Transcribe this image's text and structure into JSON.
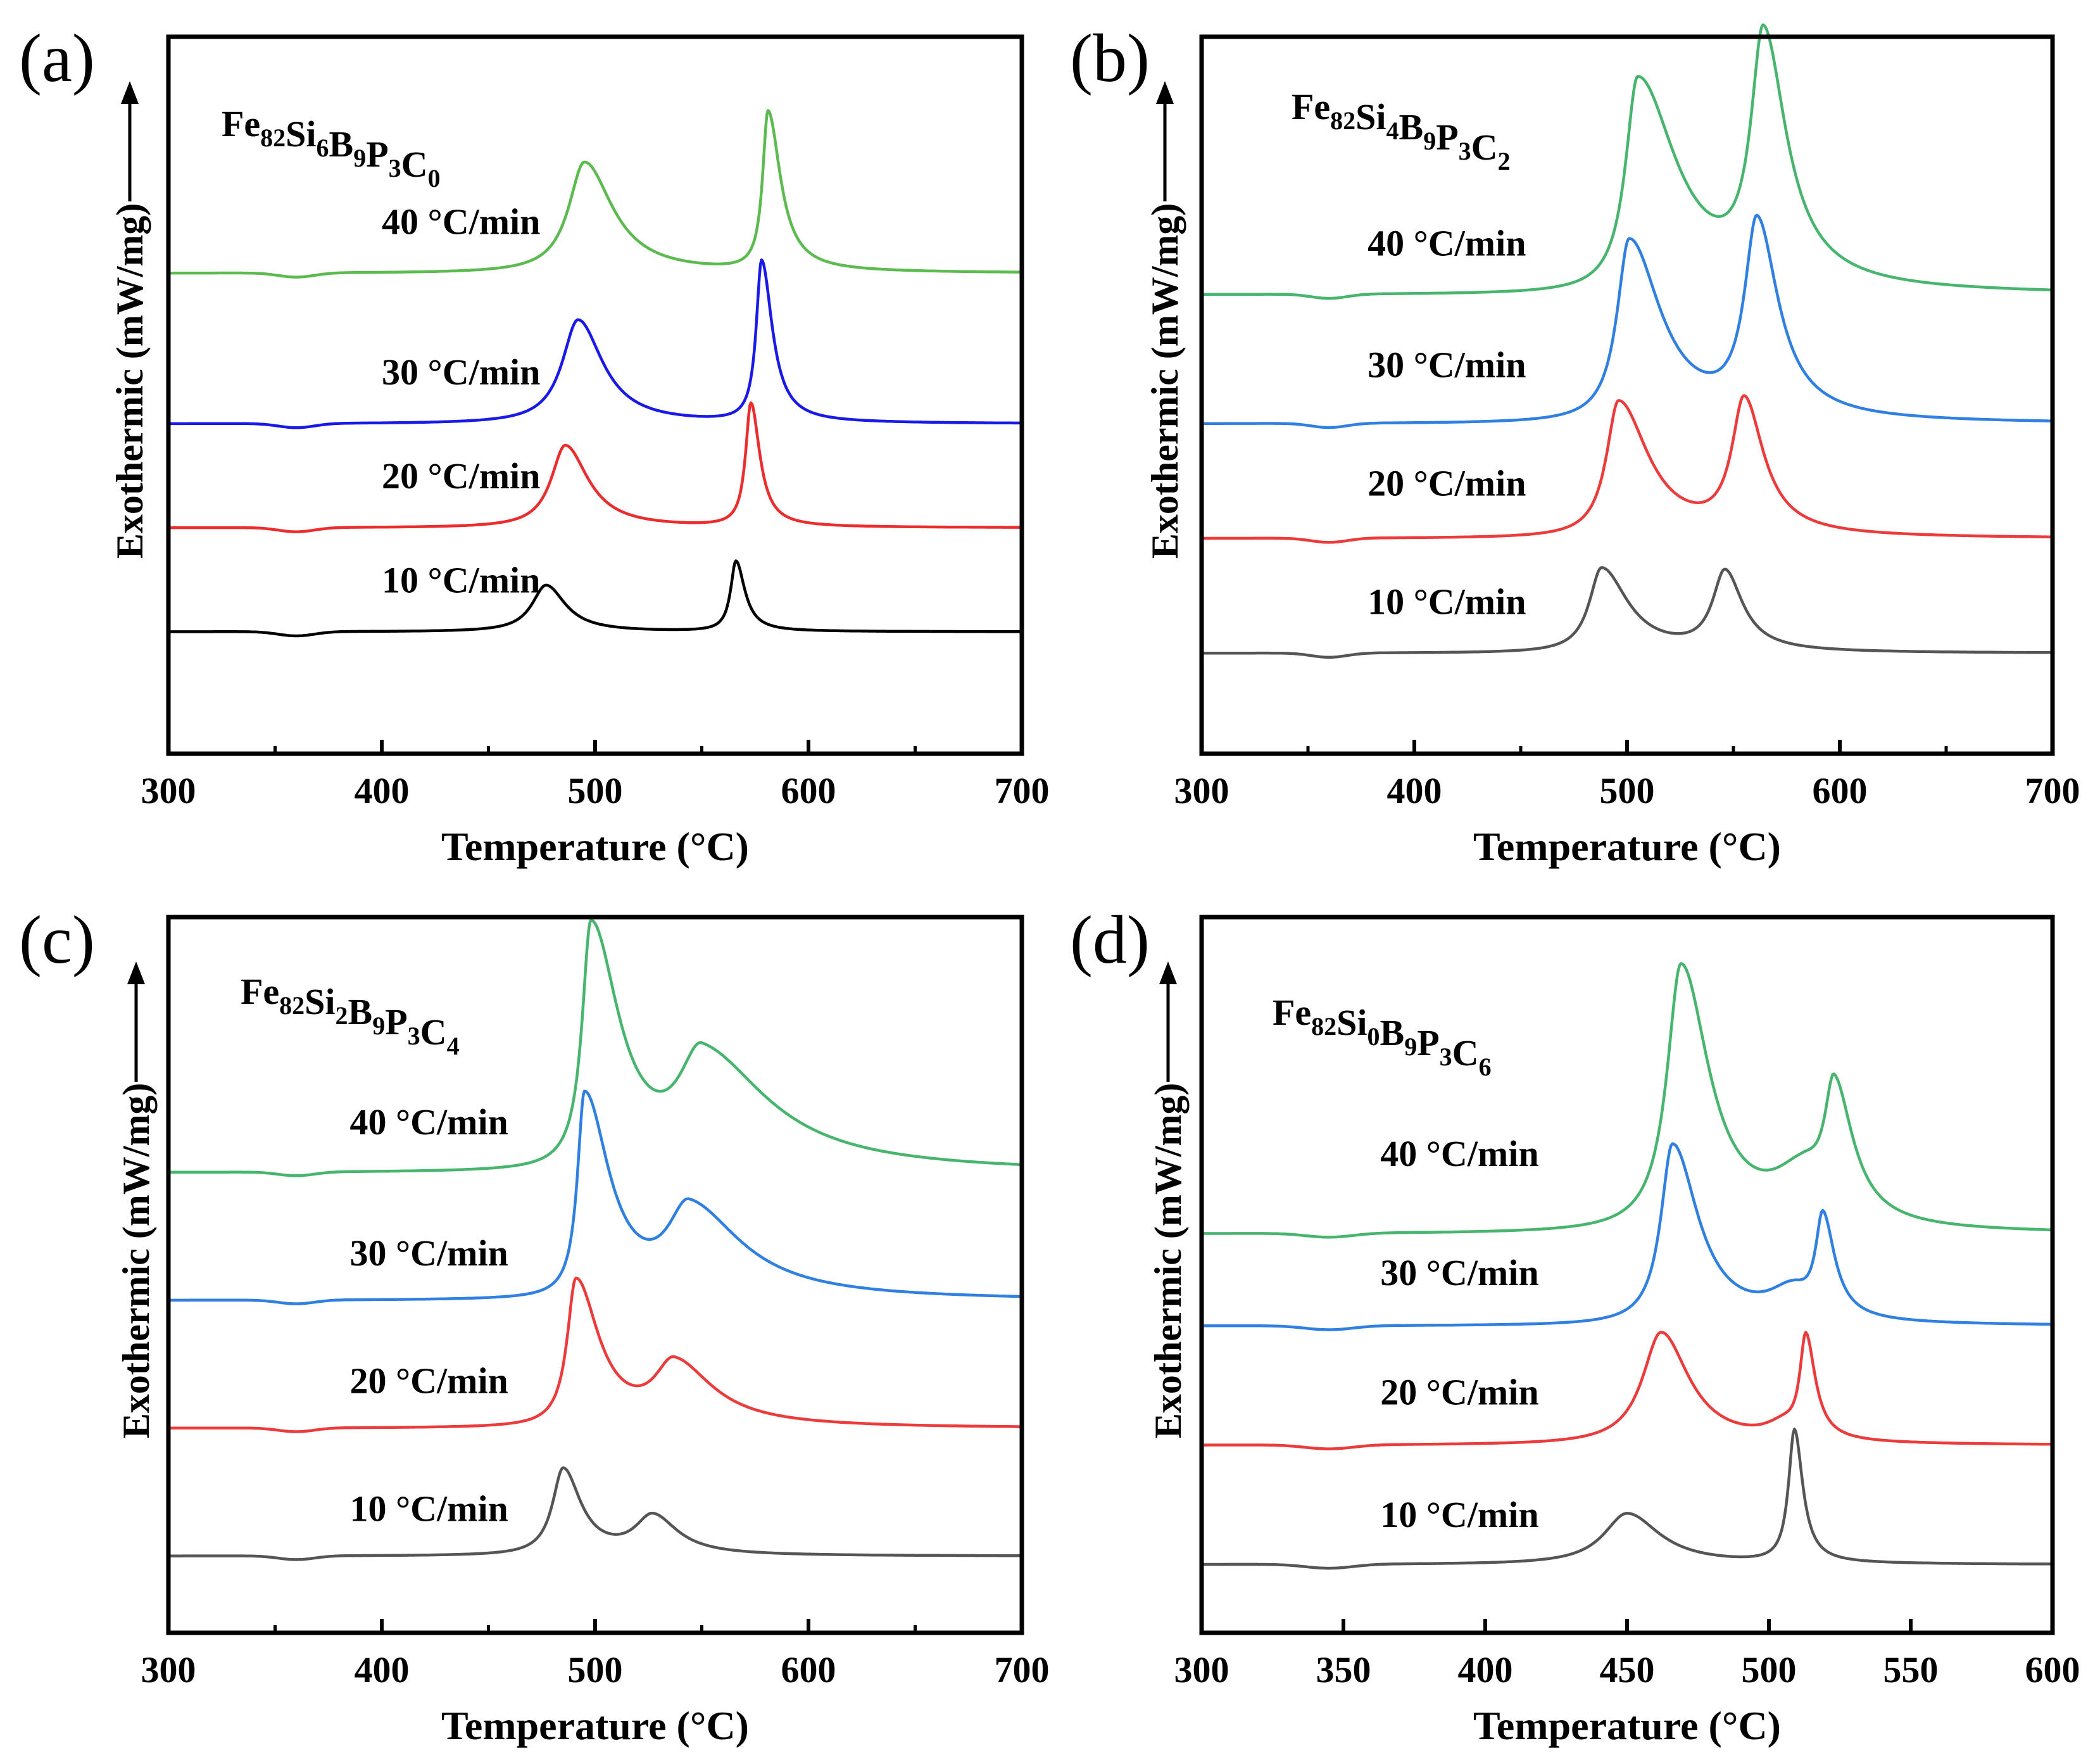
{
  "figure_type": "DSC curves, four panels",
  "chart_data": [
    {
      "panel": "a",
      "panel_label": "(a)",
      "type": "line",
      "composition": {
        "parts": [
          [
            "Fe",
            "82"
          ],
          [
            "Si",
            "6"
          ],
          [
            "B",
            "9"
          ],
          [
            "P",
            "3"
          ],
          [
            "C",
            "0"
          ]
        ]
      },
      "xlabel": "Temperature (°C)",
      "ylabel": "Exothermic (mW/mg)",
      "xlim": [
        300,
        700
      ],
      "xticks": [
        300,
        400,
        500,
        600,
        700
      ],
      "minor_xticks": [
        350,
        450,
        550,
        650
      ],
      "ylim": [
        -1.7,
        8.3
      ],
      "series": [
        {
          "name": "10 °C/min",
          "color": "#000000",
          "baseline": 0.0,
          "label_x": 400,
          "label_y": 0.55,
          "peaks": [
            [
              477,
              0.65,
              8,
              11
            ],
            [
              566,
              0.98,
              3,
              5
            ]
          ]
        },
        {
          "name": "20 °C/min",
          "color": "#ec2d2d",
          "baseline": 1.45,
          "label_x": 400,
          "label_y": 2.0,
          "peaks": [
            [
              486,
              1.15,
              8,
              13
            ],
            [
              573,
              1.72,
              3,
              5
            ]
          ]
        },
        {
          "name": "30 °C/min",
          "color": "#1a1ae8",
          "baseline": 2.9,
          "label_x": 400,
          "label_y": 3.45,
          "peaks": [
            [
              492,
              1.45,
              9,
              14
            ],
            [
              578,
              2.25,
              3,
              6
            ]
          ]
        },
        {
          "name": "40 °C/min",
          "color": "#5cbb4e",
          "baseline": 5.0,
          "label_x": 400,
          "label_y": 5.55,
          "peaks": [
            [
              495,
              1.55,
              9,
              16
            ],
            [
              581,
              2.22,
              3,
              7
            ]
          ]
        }
      ]
    },
    {
      "panel": "b",
      "panel_label": "(b)",
      "type": "line",
      "composition": {
        "parts": [
          [
            "Fe",
            "82"
          ],
          [
            "Si",
            "4"
          ],
          [
            "B",
            "9"
          ],
          [
            "P",
            "3"
          ],
          [
            "C",
            "2"
          ]
        ]
      },
      "xlabel": "Temperature (°C)",
      "ylabel": "Exothermic (mW/mg)",
      "xlim": [
        300,
        700
      ],
      "xticks": [
        300,
        400,
        500,
        600,
        700
      ],
      "minor_xticks": [
        350,
        450,
        550,
        650
      ],
      "ylim": [
        -1.4,
        8.6
      ],
      "series": [
        {
          "name": "10 °C/min",
          "color": "#555555",
          "baseline": 0.0,
          "label_x": 378,
          "label_y": 0.55,
          "peaks": [
            [
              488,
              1.18,
              7,
              15
            ],
            [
              546,
              1.1,
              7,
              10
            ]
          ]
        },
        {
          "name": "20 °C/min",
          "color": "#ec3b3b",
          "baseline": 1.6,
          "label_x": 378,
          "label_y": 2.2,
          "peaks": [
            [
              496,
              1.9,
              7,
              17
            ],
            [
              555,
              1.85,
              7,
              11
            ]
          ]
        },
        {
          "name": "30 °C/min",
          "color": "#2f80e0",
          "baseline": 3.2,
          "label_x": 378,
          "label_y": 3.85,
          "peaks": [
            [
              501,
              2.55,
              7,
              18
            ],
            [
              561,
              2.7,
              7,
              12
            ]
          ]
        },
        {
          "name": "40 °C/min",
          "color": "#47b56e",
          "baseline": 5.0,
          "label_x": 378,
          "label_y": 5.55,
          "peaks": [
            [
              505,
              3.0,
              7,
              22
            ],
            [
              564,
              3.4,
              7,
              13
            ]
          ]
        }
      ]
    },
    {
      "panel": "c",
      "panel_label": "(c)",
      "type": "line",
      "composition": {
        "parts": [
          [
            "Fe",
            "82"
          ],
          [
            "Si",
            "2"
          ],
          [
            "B",
            "9"
          ],
          [
            "P",
            "3"
          ],
          [
            "C",
            "4"
          ]
        ]
      },
      "xlabel": "Temperature (°C)",
      "ylabel": "Exothermic (mW/mg)",
      "xlim": [
        300,
        700
      ],
      "xticks": [
        300,
        400,
        500,
        600,
        700
      ],
      "minor_xticks": [
        350,
        450,
        550,
        650
      ],
      "ylim": [
        -1.2,
        10.0
      ],
      "series": [
        {
          "name": "10 °C/min",
          "color": "#555555",
          "baseline": 0.0,
          "label_x": 385,
          "label_y": 0.55,
          "peaks": [
            [
              485,
              1.35,
              6,
              10
            ],
            [
              527,
              0.6,
              10,
              14
            ]
          ]
        },
        {
          "name": "20 °C/min",
          "color": "#ec3b3b",
          "baseline": 2.0,
          "label_x": 385,
          "label_y": 2.55,
          "peaks": [
            [
              491,
              2.3,
              5,
              13
            ],
            [
              537,
              0.95,
              11,
              22
            ]
          ]
        },
        {
          "name": "30 °C/min",
          "color": "#2f80e0",
          "baseline": 4.0,
          "label_x": 385,
          "label_y": 4.55,
          "peaks": [
            [
              495,
              3.2,
              4,
              14
            ],
            [
              544,
              1.35,
              12,
              30
            ]
          ]
        },
        {
          "name": "40 °C/min",
          "color": "#47b56e",
          "baseline": 6.0,
          "label_x": 385,
          "label_y": 6.6,
          "peaks": [
            [
              498,
              3.85,
              5,
              16
            ],
            [
              550,
              1.7,
              13,
              38
            ]
          ]
        }
      ]
    },
    {
      "panel": "d",
      "panel_label": "(d)",
      "type": "line",
      "composition": {
        "parts": [
          [
            "Fe",
            "82"
          ],
          [
            "Si",
            "0"
          ],
          [
            "B",
            "9"
          ],
          [
            "P",
            "3"
          ],
          [
            "C",
            "6"
          ]
        ]
      },
      "xlabel": "Temperature (°C)",
      "ylabel": "Exothermic (mW/mg)",
      "xlim": [
        300,
        600
      ],
      "xticks": [
        300,
        350,
        400,
        450,
        500,
        550,
        600
      ],
      "minor_xticks": [],
      "ylim": [
        -1.0,
        9.5
      ],
      "series": [
        {
          "name": "10 °C/min",
          "color": "#555555",
          "baseline": 0.0,
          "label_x": 363,
          "label_y": 0.55,
          "peaks": [
            [
              450,
              0.75,
              10,
              14
            ],
            [
              509,
              1.95,
              2.5,
              3.5
            ]
          ]
        },
        {
          "name": "20 °C/min",
          "color": "#ec3b3b",
          "baseline": 1.75,
          "label_x": 363,
          "label_y": 2.35,
          "peaks": [
            [
              462,
              1.65,
              8,
              12
            ],
            [
              513,
              1.5,
              2.5,
              4
            ],
            [
              505,
              0.2,
              8,
              6
            ]
          ]
        },
        {
          "name": "30 °C/min",
          "color": "#2f80e0",
          "baseline": 3.5,
          "label_x": 363,
          "label_y": 4.1,
          "peaks": [
            [
              466,
              2.65,
              5,
              11
            ],
            [
              519,
              1.45,
              3,
              5
            ],
            [
              508,
              0.4,
              10,
              8
            ]
          ]
        },
        {
          "name": "40 °C/min",
          "color": "#47b56e",
          "baseline": 4.85,
          "label_x": 363,
          "label_y": 5.85,
          "peaks": [
            [
              469,
              3.9,
              6,
              12
            ],
            [
              523,
              1.85,
              4,
              8
            ],
            [
              512,
              0.7,
              13,
              10
            ]
          ]
        }
      ]
    }
  ]
}
